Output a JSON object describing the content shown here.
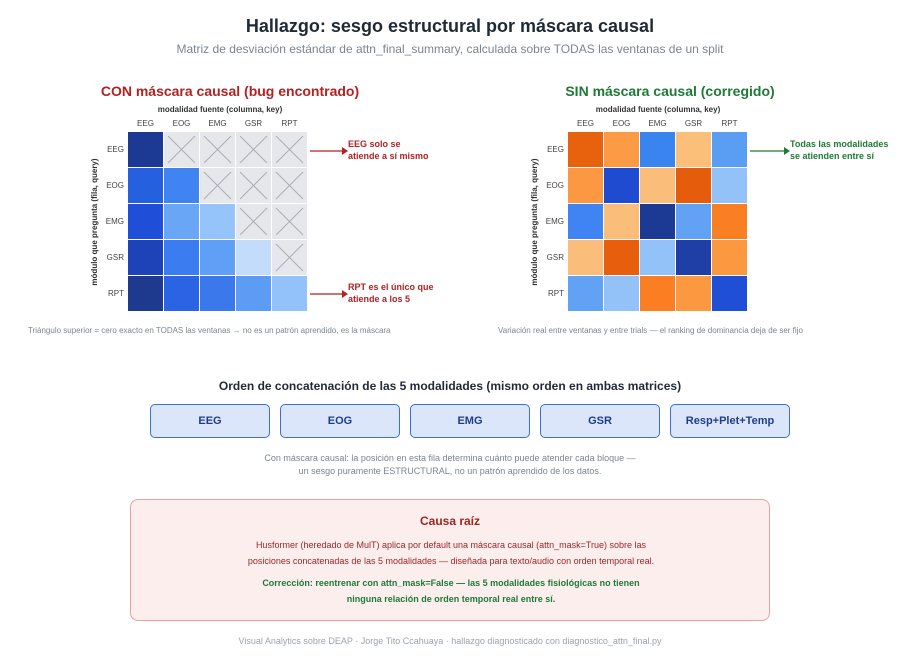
{
  "header": {
    "title": "Hallazgo: sesgo estructural por máscara causal",
    "subtitle": "Matriz de desviación estándar de attn_final_summary, calculada sobre TODAS las ventanas de un split"
  },
  "left_panel": {
    "title": "CON máscara causal (bug encontrado)",
    "title_color": "#b22222",
    "x_axis_label": "modalidad fuente (columna, key)",
    "y_axis_label": "módulo que pregunta (fila, query)",
    "col_ticks": [
      "EEG",
      "EOG",
      "EMG",
      "GSR",
      "RPT"
    ],
    "row_ticks": [
      "EEG",
      "EOG",
      "EMG",
      "GSR",
      "RPT"
    ],
    "annotation_top": "EEG solo se\natiende a sí mismo",
    "annotation_bottom": "RPT es el único que\natiende a los 5",
    "annotation_color": "#b22222",
    "note": "Triángulo superior = cero exacto en TODAS las ventanas → no es un patrón aprendido, es la máscara"
  },
  "right_panel": {
    "title": "SIN máscara causal (corregido)",
    "title_color": "#1f7a37",
    "x_axis_label": "modalidad fuente (columna, key)",
    "y_axis_label": "módulo que pregunta (fila, query)",
    "col_ticks": [
      "EEG",
      "EOG",
      "EMG",
      "GSR",
      "RPT"
    ],
    "row_ticks": [
      "EEG",
      "EOG",
      "EMG",
      "GSR",
      "RPT"
    ],
    "annotation": "Todas las modalidades\nse atienden entre sí",
    "annotation_color": "#1f7a37",
    "note": "Variación real entre ventanas y entre trials — el ranking de dominancia deja de ser fijo"
  },
  "matrix_left_colors": [
    [
      "#1c3a93",
      null,
      null,
      null,
      null
    ],
    [
      "#2560de",
      "#3f84f0",
      null,
      null,
      null
    ],
    [
      "#1f4fd8",
      "#6aa6f6",
      "#95c4fa",
      null,
      null
    ],
    [
      "#1e42b8",
      "#3b7cf0",
      "#5f9ff5",
      "#c3dcfc",
      null
    ],
    [
      "#1e3a8f",
      "#2a64e4",
      "#3a78ec",
      "#5d9cf5",
      "#93c1f9"
    ]
  ],
  "matrix_right_colors": [
    [
      "#e8620e",
      "#fb9b45",
      "#3a84f0",
      "#fbbf7a",
      "#5a9ef4"
    ],
    [
      "#fb9841",
      "#1e4bd0",
      "#fbbd7a",
      "#e55d0c",
      "#93c2f9"
    ],
    [
      "#3f84f2",
      "#fbbd7a",
      "#1c3a93",
      "#62a2f5",
      "#fa7e22"
    ],
    [
      "#fbbd7a",
      "#e75f0c",
      "#93c2f9",
      "#1f3ea6",
      "#fb9840"
    ],
    [
      "#62a2f5",
      "#93c2f9",
      "#fb7e22",
      "#fb9840",
      "#1e4fd6"
    ]
  ],
  "order": {
    "title": "Orden de concatenación de las 5 modalidades (mismo orden en ambas matrices)",
    "chips": [
      "EEG",
      "EOG",
      "EMG",
      "GSR",
      "Resp+Plet+Temp"
    ],
    "explain_line1": "Con máscara causal: la posición en esta fila determina cuánto puede atender cada bloque —",
    "explain_line2": "un sesgo puramente ESTRUCTURAL, no un patrón aprendido de los datos."
  },
  "cause": {
    "title": "Causa raíz",
    "body_line1": "Husformer (heredado de MulT) aplica por default una máscara causal (attn_mask=True) sobre las",
    "body_line2": "posiciones concatenadas de las 5 modalidades — diseñada para texto/audio con orden temporal real.",
    "fix_line1": "Corrección: reentrenar con attn_mask=False — las 5 modalidades fisiológicas no tienen",
    "fix_line2": "ninguna relación de orden temporal real entre sí."
  },
  "footer": "Visual Analytics sobre DEAP · Jorge Tito Ccahuaya · hallazgo diagnosticado con diagnostico_attn_final.py"
}
